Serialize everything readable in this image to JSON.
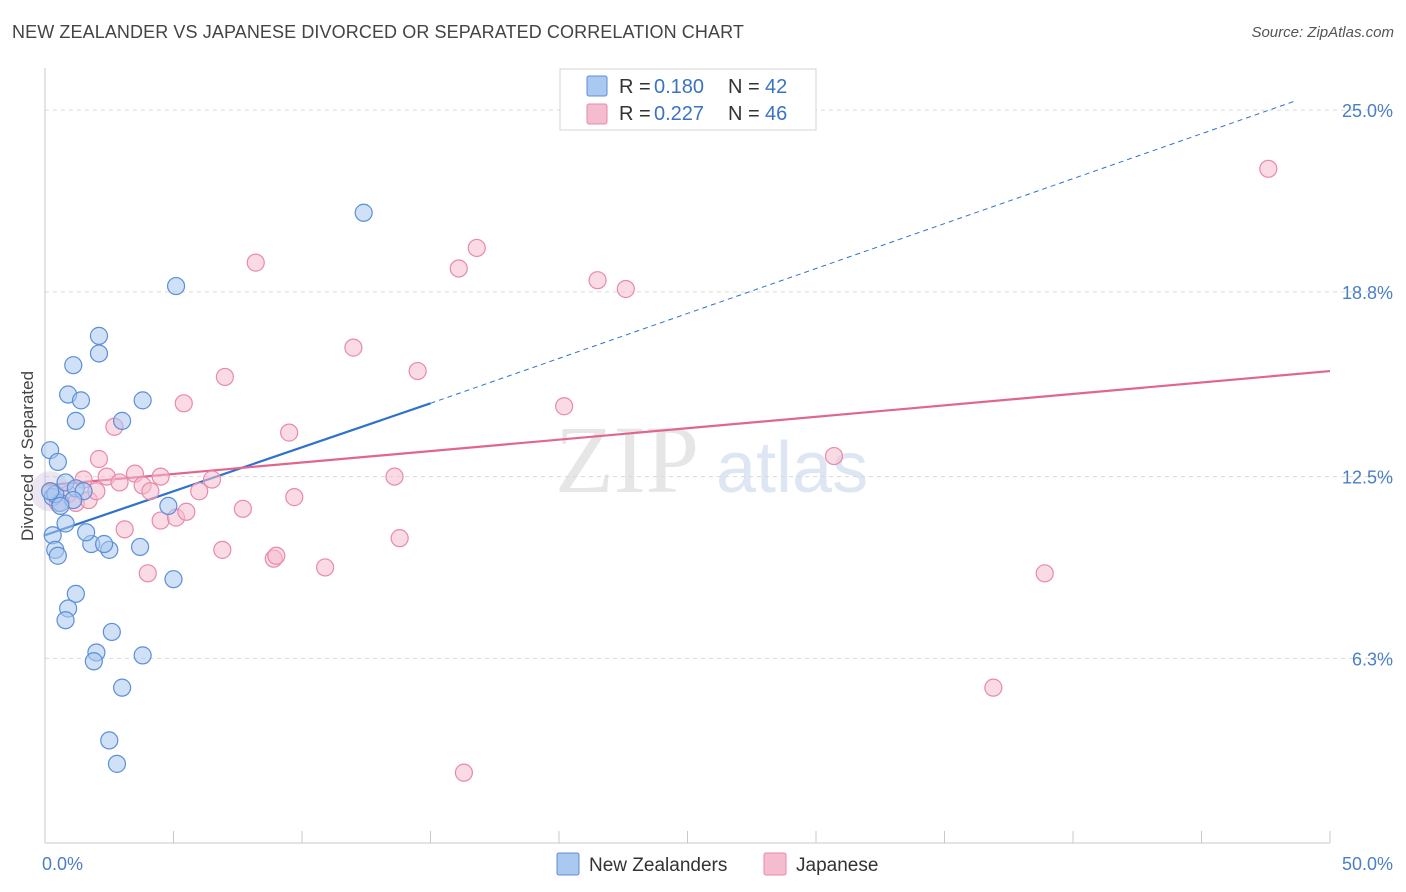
{
  "title": "NEW ZEALANDER VS JAPANESE DIVORCED OR SEPARATED CORRELATION CHART",
  "source": "Source: ZipAtlas.com",
  "colors": {
    "blue_fill": "#aac8f0",
    "blue_stroke": "#5b8fd6",
    "blue_line": "#2f72cc",
    "pink_fill": "#f5bcd0",
    "pink_stroke": "#e88aa9",
    "pink_line": "#e0668e",
    "grid": "#d9d9d9",
    "tick_label": "#4a7fc8"
  },
  "legend": {
    "rows": [
      {
        "r_label": "R = ",
        "r_value": "0.180",
        "n_label": "N = ",
        "n_value": "42"
      },
      {
        "r_label": "R = ",
        "r_value": "0.227",
        "n_label": "N = ",
        "n_value": "46"
      }
    ]
  },
  "bottom_legend": [
    "New Zealanders",
    "Japanese"
  ],
  "watermark": {
    "part1": "ZIP",
    "part2": "atlas"
  },
  "chart_data": {
    "type": "scatter",
    "title": "NEW ZEALANDER VS JAPANESE DIVORCED OR SEPARATED CORRELATION CHART",
    "xlabel": "",
    "ylabel": "Divorced or Separated",
    "xlim": [
      0,
      50
    ],
    "ylim": [
      0,
      26.2
    ],
    "x_tick_labels": [
      "0.0%",
      "50.0%"
    ],
    "y_ticks": [
      6.3,
      12.5,
      18.8,
      25.0
    ],
    "y_tick_labels": [
      "6.3%",
      "12.5%",
      "18.8%",
      "25.0%"
    ],
    "grid": true,
    "series": [
      {
        "name": "New Zealanders",
        "r": 0.18,
        "n": 42,
        "trend": {
          "x0": 0,
          "y0": 10.5,
          "x1": 15,
          "y1": 15.0,
          "dashed_to_x": 48.6,
          "dashed_to_y": 25.3
        },
        "points": [
          [
            0.2,
            13.4
          ],
          [
            0.3,
            11.8
          ],
          [
            0.5,
            13.0
          ],
          [
            0.6,
            11.6
          ],
          [
            0.4,
            11.9
          ],
          [
            0.8,
            12.3
          ],
          [
            1.2,
            12.1
          ],
          [
            0.3,
            10.5
          ],
          [
            0.8,
            10.9
          ],
          [
            1.8,
            10.2
          ],
          [
            2.5,
            10.0
          ],
          [
            0.4,
            10.0
          ],
          [
            0.5,
            9.8
          ],
          [
            1.2,
            8.5
          ],
          [
            0.9,
            8.0
          ],
          [
            0.8,
            7.6
          ],
          [
            2.6,
            7.2
          ],
          [
            2.0,
            6.5
          ],
          [
            1.9,
            6.2
          ],
          [
            3.8,
            6.4
          ],
          [
            3.7,
            10.1
          ],
          [
            5.0,
            9.0
          ],
          [
            3.0,
            5.3
          ],
          [
            2.5,
            3.5
          ],
          [
            2.8,
            2.7
          ],
          [
            1.1,
            16.3
          ],
          [
            2.1,
            16.7
          ],
          [
            2.1,
            17.3
          ],
          [
            0.9,
            15.3
          ],
          [
            1.4,
            15.1
          ],
          [
            3.8,
            15.1
          ],
          [
            1.2,
            14.4
          ],
          [
            3.0,
            14.4
          ],
          [
            4.8,
            11.5
          ],
          [
            1.6,
            10.6
          ],
          [
            12.4,
            21.5
          ],
          [
            5.1,
            19.0
          ],
          [
            1.5,
            12.0
          ],
          [
            1.1,
            11.7
          ],
          [
            0.6,
            11.5
          ],
          [
            2.3,
            10.2
          ],
          [
            0.2,
            12.0
          ]
        ]
      },
      {
        "name": "Japanese",
        "r": 0.227,
        "n": 46,
        "trend": {
          "x0": 0,
          "y0": 12.2,
          "x1": 50,
          "y1": 16.1
        },
        "points": [
          [
            0.2,
            12.0
          ],
          [
            0.5,
            11.6
          ],
          [
            0.9,
            11.9
          ],
          [
            1.2,
            11.6
          ],
          [
            1.5,
            12.4
          ],
          [
            1.7,
            11.7
          ],
          [
            2.0,
            12.0
          ],
          [
            2.1,
            13.1
          ],
          [
            2.4,
            12.5
          ],
          [
            2.7,
            14.2
          ],
          [
            2.9,
            12.3
          ],
          [
            3.1,
            10.7
          ],
          [
            3.5,
            12.6
          ],
          [
            3.8,
            12.2
          ],
          [
            4.1,
            12.0
          ],
          [
            4.5,
            12.5
          ],
          [
            4.5,
            11.0
          ],
          [
            5.1,
            11.1
          ],
          [
            5.4,
            15.0
          ],
          [
            5.5,
            11.3
          ],
          [
            6.0,
            12.0
          ],
          [
            6.5,
            12.4
          ],
          [
            6.9,
            10.0
          ],
          [
            7.0,
            15.9
          ],
          [
            7.7,
            11.4
          ],
          [
            8.2,
            19.8
          ],
          [
            8.9,
            9.7
          ],
          [
            9.0,
            9.8
          ],
          [
            9.5,
            14.0
          ],
          [
            9.7,
            11.8
          ],
          [
            10.9,
            9.4
          ],
          [
            12.0,
            16.9
          ],
          [
            13.6,
            12.5
          ],
          [
            13.8,
            10.4
          ],
          [
            14.5,
            16.1
          ],
          [
            16.1,
            19.6
          ],
          [
            16.8,
            20.3
          ],
          [
            4.0,
            9.2
          ],
          [
            20.2,
            14.9
          ],
          [
            21.5,
            19.2
          ],
          [
            22.6,
            18.9
          ],
          [
            30.7,
            13.2
          ],
          [
            36.9,
            5.3
          ],
          [
            38.9,
            9.2
          ],
          [
            47.6,
            23.0
          ],
          [
            16.3,
            2.4
          ]
        ]
      }
    ]
  }
}
